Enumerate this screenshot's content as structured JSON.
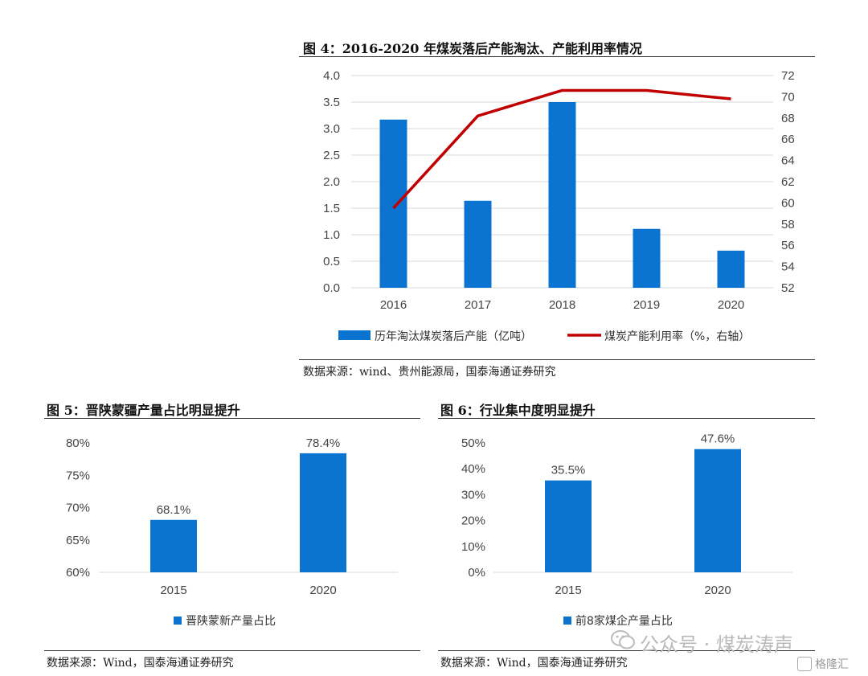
{
  "charts": {
    "fig4": {
      "title": "图 4：2016-2020 年煤炭落后产能淘汰、产能利用率情况",
      "source": "数据来源：wind、贵州能源局，国泰海通证券研究",
      "legend_bar": "历年淘汰煤炭落后产能（亿吨）",
      "legend_line": "煤炭产能利用率（%，右轴）"
    },
    "fig5": {
      "title": "图 5：晋陕蒙疆产量占比明显提升",
      "source": "数据来源：Wind，国泰海通证券研究",
      "legend": "晋陕蒙新产量占比"
    },
    "fig6": {
      "title": "图 6：行业集中度明显提升",
      "source": "数据来源：Wind，国泰海通证券研究",
      "legend": "前8家煤企产量占比"
    }
  },
  "watermark": {
    "text": "公众号 · 煤炭涛声",
    "brand": "格隆汇"
  },
  "colors": {
    "bar": "#0b74d1",
    "line": "#c00000",
    "grid": "#d9d9d9",
    "axis_text": "#444444"
  },
  "chart_data": [
    {
      "type": "bar+line",
      "categories": [
        "2016",
        "2017",
        "2018",
        "2019",
        "2020"
      ],
      "series": [
        {
          "name": "历年淘汰煤炭落后产能（亿吨）",
          "type": "bar",
          "axis": "left",
          "values": [
            3.17,
            1.64,
            3.5,
            1.11,
            0.7
          ]
        },
        {
          "name": "煤炭产能利用率（%，右轴）",
          "type": "line",
          "axis": "right",
          "values": [
            59.5,
            68.2,
            70.6,
            70.6,
            69.8
          ]
        }
      ],
      "ylim_left": [
        0,
        4
      ],
      "yticks_left": [
        "0.0",
        "0.5",
        "1.0",
        "1.5",
        "2.0",
        "2.5",
        "3.0",
        "3.5",
        "4.0"
      ],
      "ylim_right": [
        52,
        72
      ],
      "yticks_right": [
        "52",
        "54",
        "56",
        "58",
        "60",
        "62",
        "64",
        "66",
        "68",
        "70",
        "72"
      ],
      "grid": true,
      "legend": "bottom"
    },
    {
      "type": "bar",
      "categories": [
        "2015",
        "2020"
      ],
      "values": [
        68.1,
        78.4
      ],
      "data_labels": [
        "68.1%",
        "78.4%"
      ],
      "ylim": [
        60,
        80
      ],
      "yticks": [
        "60%",
        "65%",
        "70%",
        "75%",
        "80%"
      ],
      "grid": false,
      "legend": "bottom"
    },
    {
      "type": "bar",
      "categories": [
        "2015",
        "2020"
      ],
      "values": [
        35.5,
        47.6
      ],
      "data_labels": [
        "35.5%",
        "47.6%"
      ],
      "ylim": [
        0,
        50
      ],
      "yticks": [
        "0%",
        "10%",
        "20%",
        "30%",
        "40%",
        "50%"
      ],
      "grid": false,
      "legend": "bottom"
    }
  ]
}
